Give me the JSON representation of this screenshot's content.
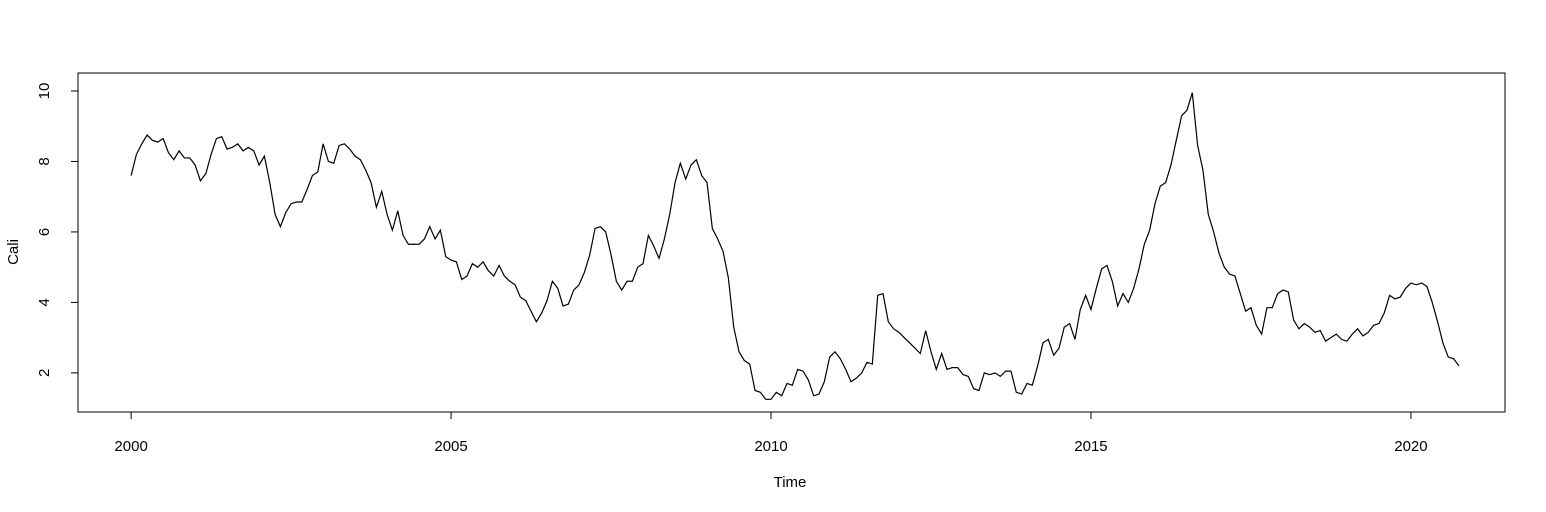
{
  "chart_data": {
    "type": "line",
    "x_label": "Time",
    "y_label": "Cali",
    "color": "#000000",
    "x": [
      2000,
      2000.083,
      2000.167,
      2000.25,
      2000.333,
      2000.417,
      2000.5,
      2000.583,
      2000.667,
      2000.75,
      2000.833,
      2000.917,
      2001,
      2001.083,
      2001.167,
      2001.25,
      2001.333,
      2001.417,
      2001.5,
      2001.583,
      2001.667,
      2001.75,
      2001.833,
      2001.917,
      2002,
      2002.083,
      2002.167,
      2002.25,
      2002.333,
      2002.417,
      2002.5,
      2002.583,
      2002.667,
      2002.75,
      2002.833,
      2002.917,
      2003,
      2003.083,
      2003.167,
      2003.25,
      2003.333,
      2003.417,
      2003.5,
      2003.583,
      2003.667,
      2003.75,
      2003.833,
      2003.917,
      2004,
      2004.083,
      2004.167,
      2004.25,
      2004.333,
      2004.417,
      2004.5,
      2004.583,
      2004.667,
      2004.75,
      2004.833,
      2004.917,
      2005,
      2005.083,
      2005.167,
      2005.25,
      2005.333,
      2005.417,
      2005.5,
      2005.583,
      2005.667,
      2005.75,
      2005.833,
      2005.917,
      2006,
      2006.083,
      2006.167,
      2006.25,
      2006.333,
      2006.417,
      2006.5,
      2006.583,
      2006.667,
      2006.75,
      2006.833,
      2006.917,
      2007,
      2007.083,
      2007.167,
      2007.25,
      2007.333,
      2007.417,
      2007.5,
      2007.583,
      2007.667,
      2007.75,
      2007.833,
      2007.917,
      2008,
      2008.083,
      2008.167,
      2008.25,
      2008.333,
      2008.417,
      2008.5,
      2008.583,
      2008.667,
      2008.75,
      2008.833,
      2008.917,
      2009,
      2009.083,
      2009.167,
      2009.25,
      2009.333,
      2009.417,
      2009.5,
      2009.583,
      2009.667,
      2009.75,
      2009.833,
      2009.917,
      2010,
      2010.083,
      2010.167,
      2010.25,
      2010.333,
      2010.417,
      2010.5,
      2010.583,
      2010.667,
      2010.75,
      2010.833,
      2010.917,
      2011,
      2011.083,
      2011.167,
      2011.25,
      2011.333,
      2011.417,
      2011.5,
      2011.583,
      2011.667,
      2011.75,
      2011.833,
      2011.917,
      2012,
      2012.083,
      2012.167,
      2012.25,
      2012.333,
      2012.417,
      2012.5,
      2012.583,
      2012.667,
      2012.75,
      2012.833,
      2012.917,
      2013,
      2013.083,
      2013.167,
      2013.25,
      2013.333,
      2013.417,
      2013.5,
      2013.583,
      2013.667,
      2013.75,
      2013.833,
      2013.917,
      2014,
      2014.083,
      2014.167,
      2014.25,
      2014.333,
      2014.417,
      2014.5,
      2014.583,
      2014.667,
      2014.75,
      2014.833,
      2014.917,
      2015,
      2015.083,
      2015.167,
      2015.25,
      2015.333,
      2015.417,
      2015.5,
      2015.583,
      2015.667,
      2015.75,
      2015.833,
      2015.917,
      2016,
      2016.083,
      2016.167,
      2016.25,
      2016.333,
      2016.417,
      2016.5,
      2016.583,
      2016.667,
      2016.75,
      2016.833,
      2016.917,
      2017,
      2017.083,
      2017.167,
      2017.25,
      2017.333,
      2017.417,
      2017.5,
      2017.583,
      2017.667,
      2017.75,
      2017.833,
      2017.917,
      2018,
      2018.083,
      2018.167,
      2018.25,
      2018.333,
      2018.417,
      2018.5,
      2018.583,
      2018.667,
      2018.75,
      2018.833,
      2018.917,
      2019,
      2019.083,
      2019.167,
      2019.25,
      2019.333,
      2019.417,
      2019.5,
      2019.583,
      2019.667,
      2019.75,
      2019.833,
      2019.917,
      2020,
      2020.083,
      2020.167,
      2020.25,
      2020.333,
      2020.417,
      2020.5,
      2020.583,
      2020.667,
      2020.75
    ],
    "values": [
      7.6,
      8.2,
      8.5,
      8.75,
      8.6,
      8.55,
      8.65,
      8.25,
      8.05,
      8.3,
      8.1,
      8.1,
      7.9,
      7.45,
      7.65,
      8.2,
      8.65,
      8.7,
      8.35,
      8.4,
      8.5,
      8.3,
      8.4,
      8.3,
      7.9,
      8.15,
      7.4,
      6.5,
      6.15,
      6.55,
      6.8,
      6.85,
      6.85,
      7.2,
      7.6,
      7.7,
      8.5,
      8.0,
      7.95,
      8.45,
      8.5,
      8.35,
      8.15,
      8.05,
      7.75,
      7.4,
      6.7,
      7.15,
      6.5,
      6.05,
      6.6,
      5.9,
      5.65,
      5.65,
      5.65,
      5.8,
      6.15,
      5.8,
      6.05,
      5.3,
      5.2,
      5.15,
      4.65,
      4.75,
      5.1,
      5.0,
      5.15,
      4.9,
      4.75,
      5.05,
      4.75,
      4.6,
      4.5,
      4.15,
      4.05,
      3.75,
      3.45,
      3.7,
      4.05,
      4.6,
      4.4,
      3.9,
      3.95,
      4.35,
      4.5,
      4.85,
      5.35,
      6.1,
      6.15,
      6.0,
      5.35,
      4.6,
      4.35,
      4.6,
      4.6,
      5.0,
      5.1,
      5.9,
      5.6,
      5.25,
      5.8,
      6.5,
      7.4,
      7.95,
      7.5,
      7.9,
      8.05,
      7.6,
      7.4,
      6.1,
      5.8,
      5.45,
      4.7,
      3.3,
      2.6,
      2.35,
      2.25,
      1.5,
      1.45,
      1.25,
      1.25,
      1.45,
      1.35,
      1.7,
      1.65,
      2.1,
      2.05,
      1.8,
      1.35,
      1.4,
      1.75,
      2.45,
      2.6,
      2.4,
      2.1,
      1.75,
      1.85,
      2.0,
      2.3,
      2.25,
      4.2,
      4.25,
      3.45,
      3.25,
      3.15,
      3.0,
      2.85,
      2.7,
      2.55,
      3.2,
      2.6,
      2.1,
      2.55,
      2.1,
      2.15,
      2.15,
      1.95,
      1.9,
      1.55,
      1.5,
      2.0,
      1.95,
      2.0,
      1.9,
      2.05,
      2.05,
      1.45,
      1.4,
      1.7,
      1.65,
      2.2,
      2.85,
      2.95,
      2.5,
      2.7,
      3.3,
      3.4,
      2.95,
      3.8,
      4.2,
      3.8,
      4.4,
      4.95,
      5.05,
      4.6,
      3.9,
      4.25,
      4.0,
      4.4,
      4.95,
      5.65,
      6.05,
      6.8,
      7.3,
      7.4,
      7.9,
      8.6,
      9.3,
      9.45,
      9.95,
      8.45,
      7.75,
      6.5,
      6.0,
      5.4,
      5.0,
      4.8,
      4.75,
      4.25,
      3.75,
      3.85,
      3.35,
      3.1,
      3.85,
      3.85,
      4.25,
      4.35,
      4.3,
      3.5,
      3.25,
      3.4,
      3.3,
      3.15,
      3.2,
      2.9,
      3.0,
      3.1,
      2.95,
      2.9,
      3.1,
      3.25,
      3.05,
      3.15,
      3.35,
      3.4,
      3.7,
      4.2,
      4.1,
      4.15,
      4.4,
      4.55,
      4.5,
      4.55,
      4.45,
      4.0,
      3.45,
      2.85,
      2.45,
      2.4,
      2.2
    ],
    "xlim": [
      1999.17,
      2021.47
    ],
    "ylim": [
      0.89,
      10.51
    ],
    "xticks": [
      2000,
      2005,
      2010,
      2015,
      2020
    ],
    "yticks": [
      2,
      4,
      6,
      8,
      10
    ]
  }
}
